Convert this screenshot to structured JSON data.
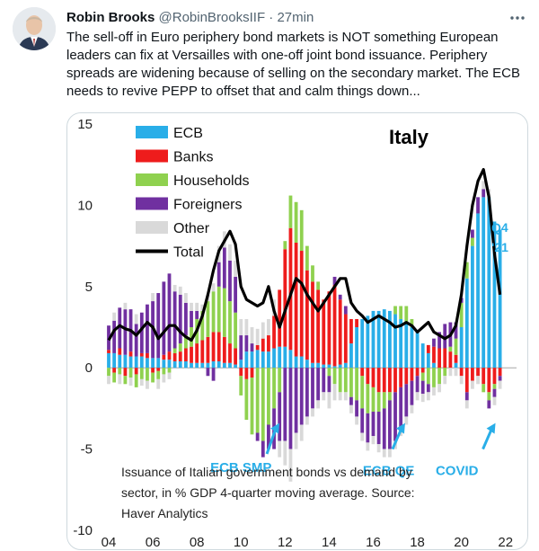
{
  "tweet": {
    "author_name": "Robin Brooks",
    "handle": "@RobinBrooksIIF",
    "separator": "·",
    "time": "27min",
    "text": "The sell-off in Euro periphery bond markets is NOT something European leaders can fix at Versailles with one-off joint bond issuance. Periphery spreads are widening because of selling on the secondary market. The ECB needs to revive PEPP to offset that and calm things down..."
  },
  "icons": {
    "more": "more-dots-icon"
  },
  "colors": {
    "ECB": "#29aee8",
    "Banks": "#ee1c1c",
    "Households": "#8fd14f",
    "Foreigners": "#7030a0",
    "Other": "#d9d9d9",
    "Total": "#000000",
    "annotation": "#29aee8"
  },
  "chart_data": {
    "type": "bar",
    "title": "Italy",
    "stacked": true,
    "ylim": [
      -10,
      15
    ],
    "yticks": [
      "15",
      "10",
      "5",
      "0",
      "-5",
      "-10"
    ],
    "xlim": [
      2004,
      2022.5
    ],
    "xticks": [
      "04",
      "06",
      "08",
      "10",
      "12",
      "14",
      "16",
      "18",
      "20",
      "22"
    ],
    "legend_position": "top-left",
    "series_names": [
      "ECB",
      "Banks",
      "Households",
      "Foreigners",
      "Other"
    ],
    "line_name": "Total",
    "x": [
      2004.0,
      2004.25,
      2004.5,
      2004.75,
      2005.0,
      2005.25,
      2005.5,
      2005.75,
      2006.0,
      2006.25,
      2006.5,
      2006.75,
      2007.0,
      2007.25,
      2007.5,
      2007.75,
      2008.0,
      2008.25,
      2008.5,
      2008.75,
      2009.0,
      2009.25,
      2009.5,
      2009.75,
      2010.0,
      2010.25,
      2010.5,
      2010.75,
      2011.0,
      2011.25,
      2011.5,
      2011.75,
      2012.0,
      2012.25,
      2012.5,
      2012.75,
      2013.0,
      2013.25,
      2013.5,
      2013.75,
      2014.0,
      2014.25,
      2014.5,
      2014.75,
      2015.0,
      2015.25,
      2015.5,
      2015.75,
      2016.0,
      2016.25,
      2016.5,
      2016.75,
      2017.0,
      2017.25,
      2017.5,
      2017.75,
      2018.0,
      2018.25,
      2018.5,
      2018.75,
      2019.0,
      2019.25,
      2019.5,
      2019.75,
      2020.0,
      2020.25,
      2020.5,
      2020.75,
      2021.0,
      2021.25,
      2021.5,
      2021.75
    ],
    "series_values": {
      "ECB": [
        0.9,
        0.9,
        0.8,
        0.8,
        0.7,
        0.7,
        0.7,
        0.6,
        0.6,
        0.6,
        0.5,
        0.5,
        0.4,
        0.4,
        0.4,
        0.3,
        0.3,
        0.3,
        0.3,
        0.4,
        0.4,
        0.3,
        0.3,
        0.2,
        0.5,
        1.0,
        1.0,
        1.1,
        1.0,
        1.0,
        1.2,
        1.3,
        1.3,
        1.1,
        0.7,
        0.7,
        0.5,
        0.3,
        0.3,
        0.2,
        0.2,
        0.1,
        0.2,
        0.3,
        1.5,
        2.5,
        3.0,
        3.2,
        3.5,
        3.5,
        3.6,
        3.5,
        3.3,
        3.0,
        2.8,
        2.5,
        2.2,
        1.5,
        0.9,
        0.3,
        0.0,
        0.0,
        0.0,
        0.3,
        2.5,
        5.5,
        7.5,
        9.5,
        10.5,
        10.5,
        9.0,
        8.5
      ],
      "Banks": [
        0.2,
        -0.3,
        0.4,
        -0.5,
        0.3,
        -0.4,
        0.2,
        0.3,
        -0.3,
        -0.2,
        0.3,
        0.5,
        0.5,
        0.6,
        0.8,
        1.0,
        1.2,
        1.4,
        1.6,
        1.8,
        1.8,
        1.6,
        1.2,
        1.0,
        -0.5,
        -0.7,
        -0.6,
        0.3,
        0.8,
        1.0,
        2.0,
        3.5,
        6.0,
        7.5,
        7.0,
        6.5,
        5.5,
        5.0,
        4.5,
        4.0,
        4.5,
        5.0,
        4.0,
        3.0,
        1.5,
        0.5,
        -0.5,
        -1.0,
        -1.2,
        -1.5,
        -1.5,
        -1.5,
        -1.5,
        -1.2,
        -1.0,
        -0.8,
        -0.5,
        -0.3,
        0.5,
        1.0,
        1.2,
        1.2,
        1.0,
        0.5,
        -0.5,
        -1.5,
        -0.8,
        -0.5,
        -1.0,
        -1.5,
        -1.0,
        -0.5
      ],
      "Households": [
        -0.5,
        -0.6,
        -0.4,
        -0.5,
        -0.6,
        -0.8,
        -0.7,
        -0.8,
        -0.6,
        -0.5,
        -0.4,
        -0.3,
        0.3,
        0.5,
        0.8,
        1.2,
        1.5,
        1.8,
        2.2,
        2.5,
        2.8,
        3.0,
        2.6,
        2.2,
        -1.2,
        -2.5,
        -3.5,
        -4.0,
        -4.5,
        -3.5,
        -2.5,
        -1.5,
        0.5,
        2.0,
        2.5,
        2.5,
        1.5,
        1.0,
        0.5,
        0.0,
        -0.5,
        -1.0,
        -1.5,
        -1.5,
        -1.8,
        -2.0,
        -2.0,
        -1.8,
        -1.5,
        -1.2,
        -1.0,
        -0.5,
        0.5,
        0.8,
        1.0,
        0.5,
        0.0,
        -0.5,
        -1.0,
        -1.2,
        -1.0,
        -0.5,
        0.3,
        1.0,
        1.5,
        1.0,
        0.5,
        0.0,
        -0.5,
        -0.5,
        -0.3,
        0.0
      ],
      "Foreigners": [
        1.5,
        2.0,
        2.5,
        2.8,
        2.6,
        2.0,
        2.5,
        3.0,
        3.5,
        4.0,
        4.5,
        4.8,
        3.5,
        3.0,
        2.0,
        1.0,
        0.5,
        0.0,
        -0.5,
        -0.8,
        1.5,
        2.5,
        2.5,
        2.2,
        1.5,
        1.0,
        0.5,
        -0.5,
        -1.0,
        -1.5,
        -2.5,
        -3.0,
        -4.5,
        -5.0,
        -4.0,
        -3.5,
        -3.0,
        -2.5,
        -2.0,
        -1.5,
        -1.0,
        0.5,
        0.3,
        0.5,
        -0.5,
        -1.0,
        -1.5,
        -1.8,
        -1.5,
        -2.0,
        -2.5,
        -3.0,
        -3.0,
        -2.5,
        -2.0,
        -1.5,
        -1.0,
        -0.8,
        -0.5,
        0.5,
        1.0,
        1.5,
        1.5,
        1.0,
        0.3,
        -0.5,
        0.5,
        1.0,
        0.5,
        -0.5,
        -0.5,
        -0.3
      ],
      "Other": [
        -0.5,
        0.5,
        -0.6,
        0.4,
        -0.5,
        0.6,
        -0.4,
        -0.5,
        0.5,
        -0.6,
        -0.5,
        -0.4,
        0.4,
        0.5,
        0.6,
        0.5,
        0.5,
        0.4,
        0.4,
        0.5,
        1.0,
        1.0,
        1.0,
        1.0,
        1.0,
        1.0,
        1.0,
        1.0,
        1.0,
        1.0,
        1.0,
        -1.0,
        -1.5,
        -2.0,
        -1.0,
        -1.0,
        -0.5,
        -0.5,
        -0.5,
        -0.5,
        -1.0,
        -1.0,
        -0.5,
        -0.5,
        -0.5,
        -0.5,
        -0.5,
        -0.5,
        -0.5,
        -0.5,
        -0.5,
        -0.5,
        -0.5,
        -0.5,
        -0.5,
        -0.5,
        -0.5,
        -0.5,
        -0.5,
        -0.5,
        -0.5,
        -0.5,
        -0.5,
        -0.5,
        -0.5,
        -0.5,
        -0.5,
        -0.5,
        0.5,
        0.5,
        -0.5,
        -0.5
      ],
      "Total": [
        1.7,
        2.3,
        2.6,
        2.4,
        2.3,
        2.0,
        2.4,
        2.8,
        2.5,
        1.8,
        2.2,
        2.6,
        2.6,
        2.2,
        1.9,
        1.7,
        2.3,
        3.2,
        4.5,
        6.0,
        7.2,
        7.8,
        8.4,
        7.6,
        5.0,
        4.2,
        4.0,
        3.8,
        4.0,
        5.0,
        3.5,
        2.5,
        3.5,
        4.5,
        5.5,
        5.2,
        4.5,
        4.0,
        3.5,
        4.0,
        4.5,
        5.0,
        5.5,
        5.5,
        4.0,
        3.5,
        3.2,
        2.8,
        3.0,
        3.2,
        3.0,
        2.8,
        2.5,
        2.6,
        2.8,
        2.6,
        2.2,
        2.5,
        2.8,
        2.2,
        2.0,
        1.8,
        2.0,
        2.6,
        4.5,
        7.5,
        10.0,
        11.5,
        12.2,
        10.5,
        7.0,
        4.5
      ]
    },
    "annotations": [
      {
        "label": "ECB SMP",
        "arrow_x": 2011.5,
        "arrow_y_top": -3.4,
        "arrow_y_bottom": -5.3,
        "text_x": 2010.0,
        "text_y": -6.4
      },
      {
        "label": "ECB QE",
        "arrow_x": 2017.2,
        "arrow_y_top": -3.4,
        "arrow_y_bottom": -5.0,
        "text_x": 2016.7,
        "text_y": -6.6
      },
      {
        "label": "COVID",
        "arrow_x": 2021.3,
        "arrow_y_top": -3.4,
        "arrow_y_bottom": -5.0,
        "text_x": 2019.8,
        "text_y": -6.6
      }
    ],
    "q4_label": [
      "Q4",
      "'21"
    ],
    "footnote": [
      "Issuance of Italian government bonds vs demand by",
      "sector, in % GDP 4-quarter moving average. Source:",
      "Haver Analytics"
    ]
  }
}
